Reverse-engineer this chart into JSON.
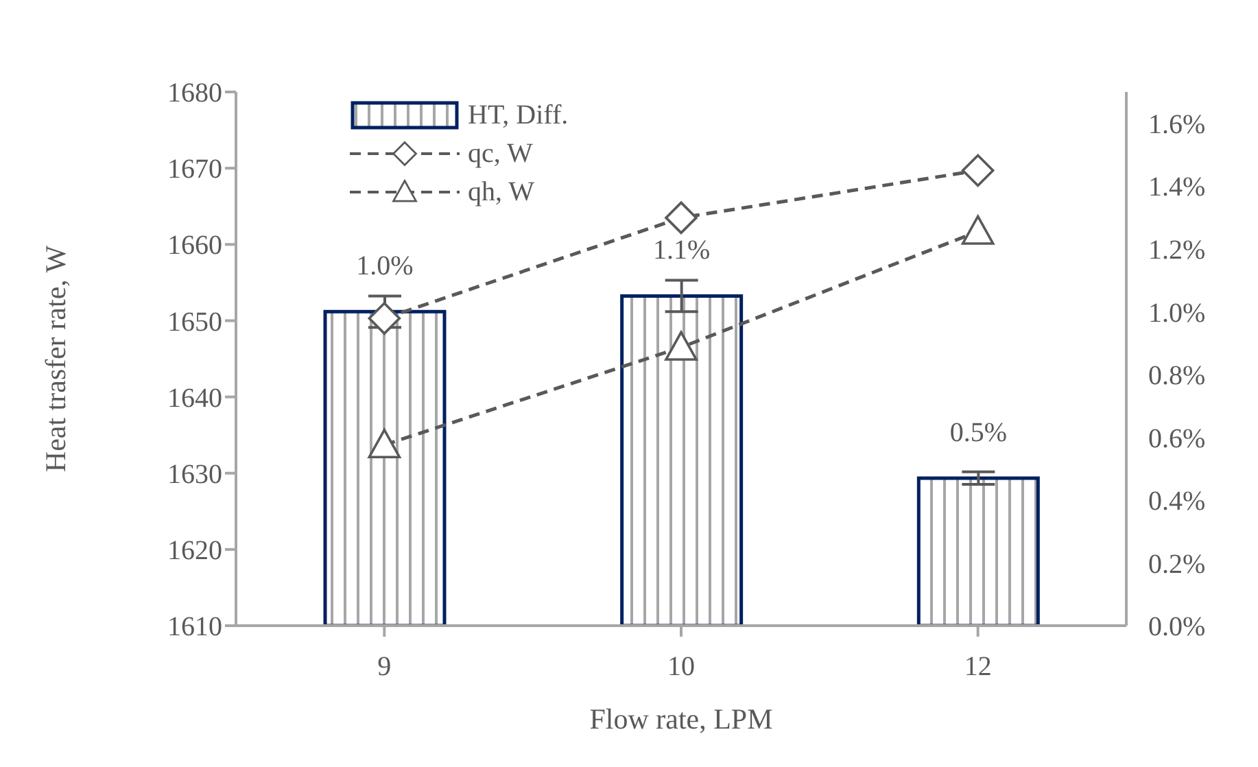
{
  "chart_data": {
    "type": "bar",
    "xlabel": "Flow rate, LPM",
    "ylabel": "Heat trasfer rate, W",
    "categories": [
      "9",
      "10",
      "12"
    ],
    "series": [
      {
        "name": "HT, Diff.",
        "axis": "y2",
        "color": "#002060",
        "values": [
          1.0,
          1.05,
          0.47
        ],
        "errors": [
          0.05,
          0.05,
          0.02
        ],
        "value_labels": [
          "1.0%",
          "1.1%",
          "0.5%"
        ]
      },
      {
        "name": "qc, W",
        "type": "line",
        "color": "#595959",
        "marker": "diamond",
        "line_style": "dashed",
        "values": [
          1650.3,
          1663.5,
          1669.7
        ]
      },
      {
        "name": "qh, W",
        "type": "line",
        "color": "#595959",
        "marker": "triangle",
        "line_style": "dashed",
        "values": [
          1633.7,
          1646.5,
          1661.7
        ]
      }
    ],
    "ylim": [
      1610,
      1680
    ],
    "yticks": [
      1610,
      1620,
      1630,
      1640,
      1650,
      1660,
      1670,
      1680
    ],
    "y2lim": [
      0,
      1.7
    ],
    "y2ticks": [
      {
        "value": 0,
        "label": "0.0%"
      },
      {
        "value": 0.2,
        "label": "0.2%"
      },
      {
        "value": 0.4,
        "label": "0.4%"
      },
      {
        "value": 0.6,
        "label": "0.6%"
      },
      {
        "value": 0.8,
        "label": "0.8%"
      },
      {
        "value": 1.0,
        "label": "1.0%"
      },
      {
        "value": 1.2,
        "label": "1.2%"
      },
      {
        "value": 1.4,
        "label": "1.4%"
      },
      {
        "value": 1.6,
        "label": "1.6%"
      }
    ],
    "grid": false,
    "legend": "top left"
  }
}
